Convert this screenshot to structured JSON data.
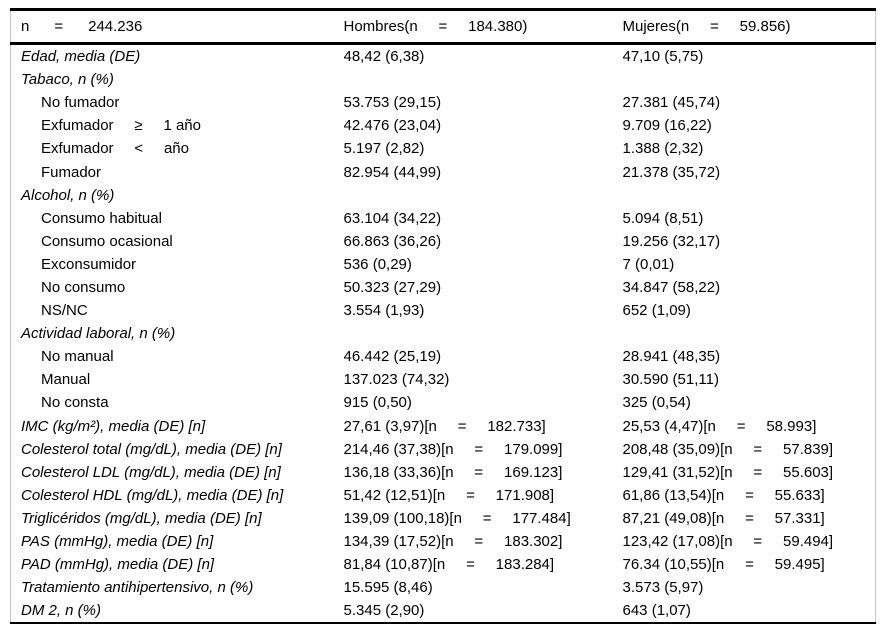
{
  "colors": {
    "text": "#000000",
    "rule": "#000000",
    "side_border": "#c9c9c9"
  },
  "table": {
    "header": {
      "total": "n      =      244.236",
      "hombres": "Hombres(n     =     184.380)",
      "mujeres": "Mujeres(n     =     59.856)"
    },
    "rows": [
      {
        "label": "Edad, media (DE)",
        "italic": true,
        "indent": false,
        "hombres": "48,42 (6,38)",
        "mujeres": "47,10 (5,75)"
      },
      {
        "label": "Tabaco, n (%)",
        "italic": true,
        "indent": false,
        "hombres": "",
        "mujeres": ""
      },
      {
        "label": "No fumador",
        "italic": false,
        "indent": true,
        "hombres": "53.753 (29,15)",
        "mujeres": "27.381 (45,74)"
      },
      {
        "label": "Exfumador     ≥     1 año",
        "italic": false,
        "indent": true,
        "hombres": "42.476 (23,04)",
        "mujeres": "9.709 (16,22)"
      },
      {
        "label": "Exfumador     <     año",
        "italic": false,
        "indent": true,
        "hombres": "5.197 (2,82)",
        "mujeres": "1.388 (2,32)"
      },
      {
        "label": "Fumador",
        "italic": false,
        "indent": true,
        "hombres": "82.954 (44,99)",
        "mujeres": "21.378 (35,72)"
      },
      {
        "label": "Alcohol, n (%)",
        "italic": true,
        "indent": false,
        "hombres": "",
        "mujeres": ""
      },
      {
        "label": "Consumo habitual",
        "italic": false,
        "indent": true,
        "hombres": "63.104 (34,22)",
        "mujeres": "5.094 (8,51)"
      },
      {
        "label": "Consumo ocasional",
        "italic": false,
        "indent": true,
        "hombres": "66.863 (36,26)",
        "mujeres": "19.256 (32,17)"
      },
      {
        "label": "Exconsumidor",
        "italic": false,
        "indent": true,
        "hombres": "536 (0,29)",
        "mujeres": "7 (0,01)"
      },
      {
        "label": "No consumo",
        "italic": false,
        "indent": true,
        "hombres": "50.323 (27,29)",
        "mujeres": "34.847 (58,22)"
      },
      {
        "label": "NS/NC",
        "italic": false,
        "indent": true,
        "hombres": "3.554 (1,93)",
        "mujeres": "652 (1,09)"
      },
      {
        "label": "Actividad laboral, n (%)",
        "italic": true,
        "indent": false,
        "hombres": "",
        "mujeres": ""
      },
      {
        "label": "No manual",
        "italic": false,
        "indent": true,
        "hombres": "46.442 (25,19)",
        "mujeres": "28.941 (48,35)"
      },
      {
        "label": "Manual",
        "italic": false,
        "indent": true,
        "hombres": "137.023 (74,32)",
        "mujeres": "30.590 (51,11)"
      },
      {
        "label": "No consta",
        "italic": false,
        "indent": true,
        "hombres": "915 (0,50)",
        "mujeres": "325 (0,54)"
      },
      {
        "label": "IMC (kg/m²), media (DE) [n]",
        "italic": true,
        "indent": false,
        "hombres": "27,61 (3,97)[n     =     182.733]",
        "mujeres": "25,53 (4,47)[n     =     58.993]"
      },
      {
        "label": "Colesterol total (mg/dL), media (DE) [n]",
        "italic": true,
        "indent": false,
        "hombres": "214,46 (37,38)[n     =     179.099]",
        "mujeres": "208,48 (35,09)[n     =     57.839]"
      },
      {
        "label": "Colesterol LDL (mg/dL), media (DE) [n]",
        "italic": true,
        "indent": false,
        "hombres": "136,18 (33,36)[n     =     169.123]",
        "mujeres": "129,41 (31,52)[n     =     55.603]"
      },
      {
        "label": "Colesterol HDL (mg/dL), media (DE) [n]",
        "italic": true,
        "indent": false,
        "hombres": "51,42 (12,51)[n     =     171.908]",
        "mujeres": "61,86 (13,54)[n     =     55.633]"
      },
      {
        "label": "Triglicéridos (mg/dL), media (DE) [n]",
        "italic": true,
        "indent": false,
        "hombres": "139,09 (100,18)[n     =     177.484]",
        "mujeres": "87,21 (49,08)[n     =     57.331]"
      },
      {
        "label": "PAS (mmHg), media (DE) [n]",
        "italic": true,
        "indent": false,
        "hombres": "134,39 (17,52)[n     =     183.302]",
        "mujeres": "123,42 (17,08)[n     =     59.494]"
      },
      {
        "label": "PAD (mmHg), media (DE) [n]",
        "italic": true,
        "indent": false,
        "hombres": "81,84 (10,87)[n     =     183.284]",
        "mujeres": "76.34 (10,55)[n     =     59.495]"
      },
      {
        "label": "Tratamiento antihipertensivo, n (%)",
        "italic": true,
        "indent": false,
        "hombres": "15.595 (8,46)",
        "mujeres": "3.573 (5,97)"
      },
      {
        "label": "DM 2, n (%)",
        "italic": true,
        "indent": false,
        "hombres": "5.345 (2,90)",
        "mujeres": "643 (1,07)"
      }
    ]
  }
}
